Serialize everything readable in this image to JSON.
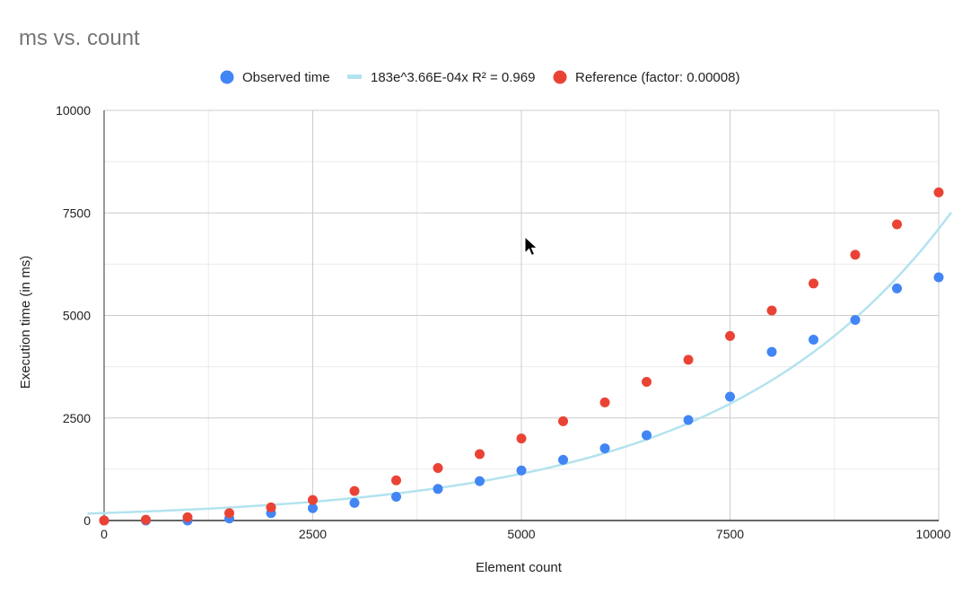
{
  "chart_data": {
    "type": "scatter",
    "title": "ms vs. count",
    "xlabel": "Element count",
    "ylabel": "Execution time (in ms)",
    "xlim": [
      0,
      10000
    ],
    "ylim": [
      0,
      10000
    ],
    "x_ticks": [
      0,
      2500,
      5000,
      7500,
      10000
    ],
    "y_ticks": [
      0,
      2500,
      5000,
      7500,
      10000
    ],
    "grid": true,
    "legend_position": "top",
    "series": [
      {
        "name": "Observed time",
        "kind": "points",
        "color": "#4285f4",
        "points": [
          [
            0,
            0
          ],
          [
            500,
            0
          ],
          [
            1000,
            0
          ],
          [
            1500,
            50
          ],
          [
            2000,
            180
          ],
          [
            2500,
            300
          ],
          [
            3000,
            430
          ],
          [
            3500,
            580
          ],
          [
            4000,
            770
          ],
          [
            4500,
            960
          ],
          [
            5000,
            1220
          ],
          [
            5500,
            1480
          ],
          [
            6000,
            1760
          ],
          [
            6500,
            2080
          ],
          [
            7000,
            2450
          ],
          [
            7500,
            3020
          ],
          [
            8000,
            4110
          ],
          [
            8500,
            4410
          ],
          [
            9000,
            4890
          ],
          [
            9500,
            5660
          ],
          [
            10000,
            5930
          ]
        ]
      },
      {
        "name": "183e^3.66E-04x R² = 0.969",
        "kind": "trendline",
        "color": "#b3e3ef",
        "equation": {
          "a": 183,
          "b": 0.000366
        },
        "x_range": [
          -200,
          10150
        ]
      },
      {
        "name": "Reference (factor: 0.00008)",
        "kind": "points",
        "color": "#ea4335",
        "points": [
          [
            0,
            0
          ],
          [
            500,
            20
          ],
          [
            1000,
            80
          ],
          [
            1500,
            180
          ],
          [
            2000,
            320
          ],
          [
            2500,
            500
          ],
          [
            3000,
            720
          ],
          [
            3500,
            980
          ],
          [
            4000,
            1280
          ],
          [
            4500,
            1620
          ],
          [
            5000,
            2000
          ],
          [
            5500,
            2420
          ],
          [
            6000,
            2880
          ],
          [
            6500,
            3380
          ],
          [
            7000,
            3920
          ],
          [
            7500,
            4500
          ],
          [
            8000,
            5120
          ],
          [
            8500,
            5780
          ],
          [
            9000,
            6480
          ],
          [
            9500,
            7220
          ],
          [
            10000,
            8000
          ]
        ]
      }
    ]
  },
  "colors": {
    "title": "#757575",
    "axis_text": "#222222",
    "grid_major": "#cccccc",
    "grid_minor": "#ebebeb",
    "axis_line": "#333333"
  }
}
